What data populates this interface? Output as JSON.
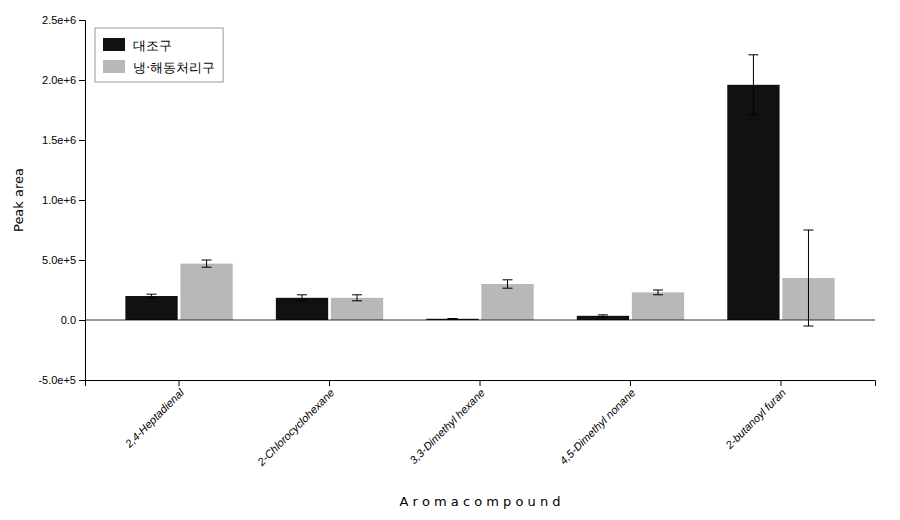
{
  "chart_data": {
    "type": "bar",
    "categories": [
      "2,4-Heptadienal",
      "2-Chlorocyclohexane",
      "3,3-Dimethyl hexane",
      "4,5-Dimethyl nonane",
      "2-butanoyl furan"
    ],
    "series": [
      {
        "name": "대조구",
        "color": "#111111",
        "values": [
          200000,
          185000,
          10000,
          35000,
          1960000
        ],
        "errors": [
          15000,
          25000,
          2000,
          8000,
          250000
        ]
      },
      {
        "name": "냉·해동처리구",
        "color": "#b8b8b8",
        "values": [
          470000,
          185000,
          300000,
          230000,
          350000
        ],
        "errors": [
          30000,
          25000,
          35000,
          20000,
          400000
        ]
      }
    ],
    "xlabel": "A r o m a   c o m p o u n d",
    "ylabel": "Peak area",
    "ylim": [
      -500000,
      2500000
    ],
    "yticks": [
      {
        "value": -500000,
        "label": "-5.0e+5"
      },
      {
        "value": 0,
        "label": "0.0"
      },
      {
        "value": 500000,
        "label": "5.0e+5"
      },
      {
        "value": 1000000,
        "label": "1.0e+6"
      },
      {
        "value": 1500000,
        "label": "1.5e+6"
      },
      {
        "value": 2000000,
        "label": "2.0e+6"
      },
      {
        "value": 2500000,
        "label": "2.5e+6"
      }
    ],
    "legend": "upper left",
    "grid": false
  }
}
